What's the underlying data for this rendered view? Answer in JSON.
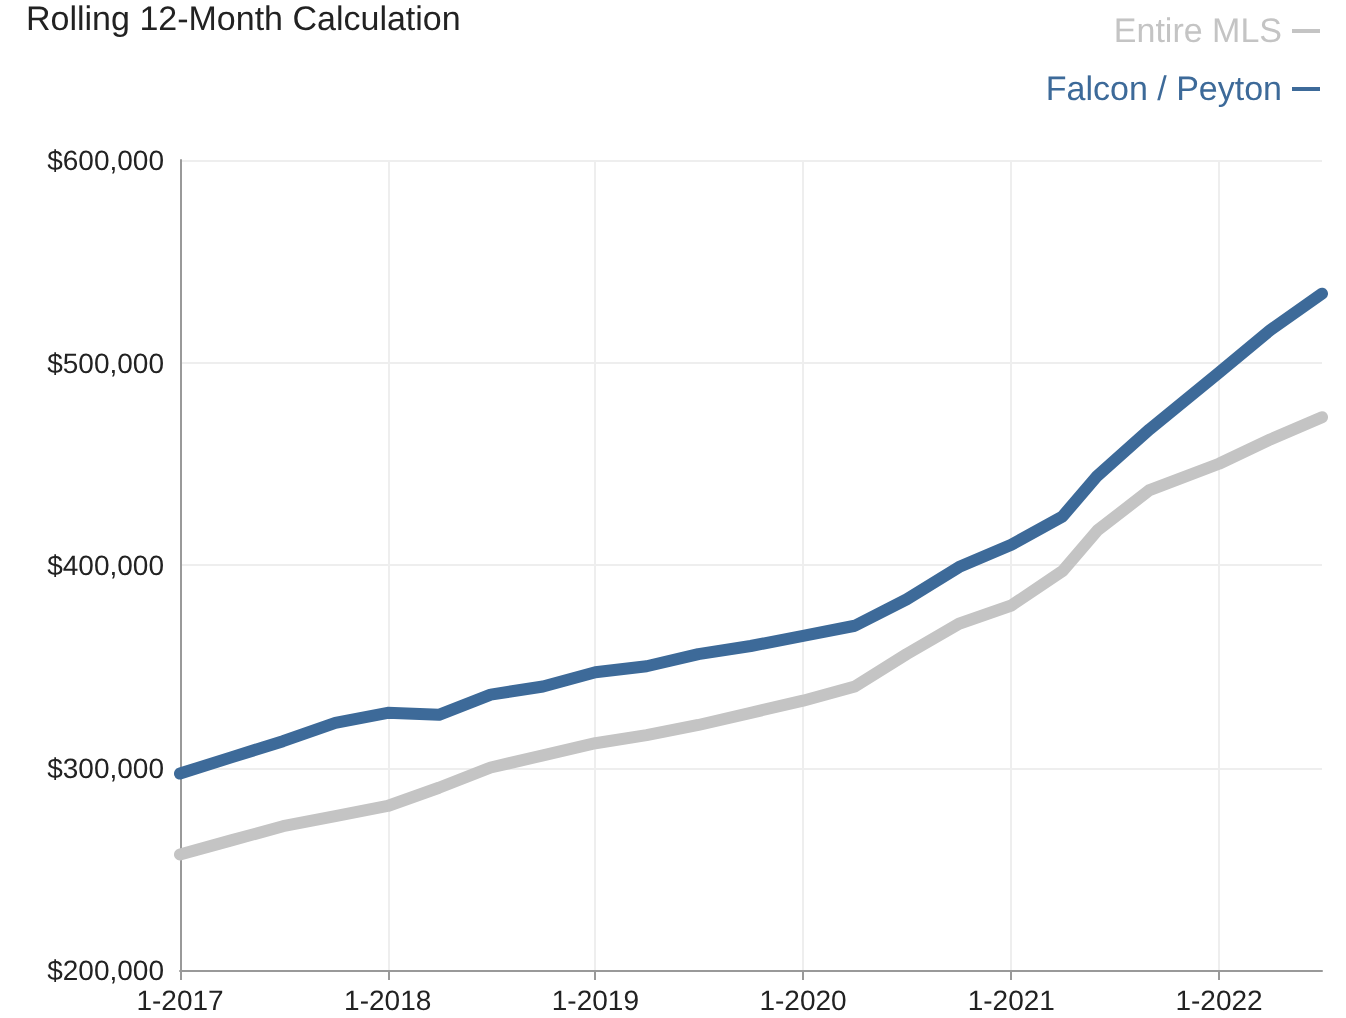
{
  "chart_data": {
    "type": "line",
    "title": "Rolling 12-Month Calculation",
    "x": [
      "2017-01",
      "2017-04",
      "2017-07",
      "2017-10",
      "2018-01",
      "2018-04",
      "2018-07",
      "2018-10",
      "2019-01",
      "2019-04",
      "2019-07",
      "2019-10",
      "2020-01",
      "2020-04",
      "2020-07",
      "2020-10",
      "2021-01",
      "2021-04",
      "2021-06",
      "2021-09",
      "2022-01",
      "2022-04",
      "2022-07"
    ],
    "series": [
      {
        "name": "Entire MLS",
        "color": "#c4c4c4",
        "values": [
          257000,
          264000,
          271000,
          276000,
          281000,
          290000,
          300000,
          306000,
          312000,
          316000,
          321000,
          327000,
          333000,
          340000,
          356000,
          371000,
          380000,
          397000,
          417000,
          437000,
          450000,
          462000,
          473000
        ]
      },
      {
        "name": "Falcon / Peyton",
        "color": "#3d6a99",
        "values": [
          297000,
          305000,
          313000,
          322000,
          327000,
          326000,
          336000,
          340000,
          347000,
          350000,
          356000,
          360000,
          365000,
          370000,
          383000,
          399000,
          410000,
          424000,
          444000,
          467000,
          495000,
          516000,
          534000
        ]
      }
    ],
    "xlim": [
      "2017-01",
      "2022-07"
    ],
    "xticks": [
      {
        "value": "2017-01",
        "label": "1-2017"
      },
      {
        "value": "2018-01",
        "label": "1-2018"
      },
      {
        "value": "2019-01",
        "label": "1-2019"
      },
      {
        "value": "2020-01",
        "label": "1-2020"
      },
      {
        "value": "2021-01",
        "label": "1-2021"
      },
      {
        "value": "2022-01",
        "label": "1-2022"
      }
    ],
    "ylim": [
      200000,
      600000
    ],
    "yticks": [
      {
        "value": 200000,
        "label": "$200,000"
      },
      {
        "value": 300000,
        "label": "$300,000"
      },
      {
        "value": 400000,
        "label": "$400,000"
      },
      {
        "value": 500000,
        "label": "$500,000"
      },
      {
        "value": 600000,
        "label": "$600,000"
      }
    ],
    "grid": true,
    "legend": "top right",
    "marker": "none",
    "line_style": "solid"
  }
}
